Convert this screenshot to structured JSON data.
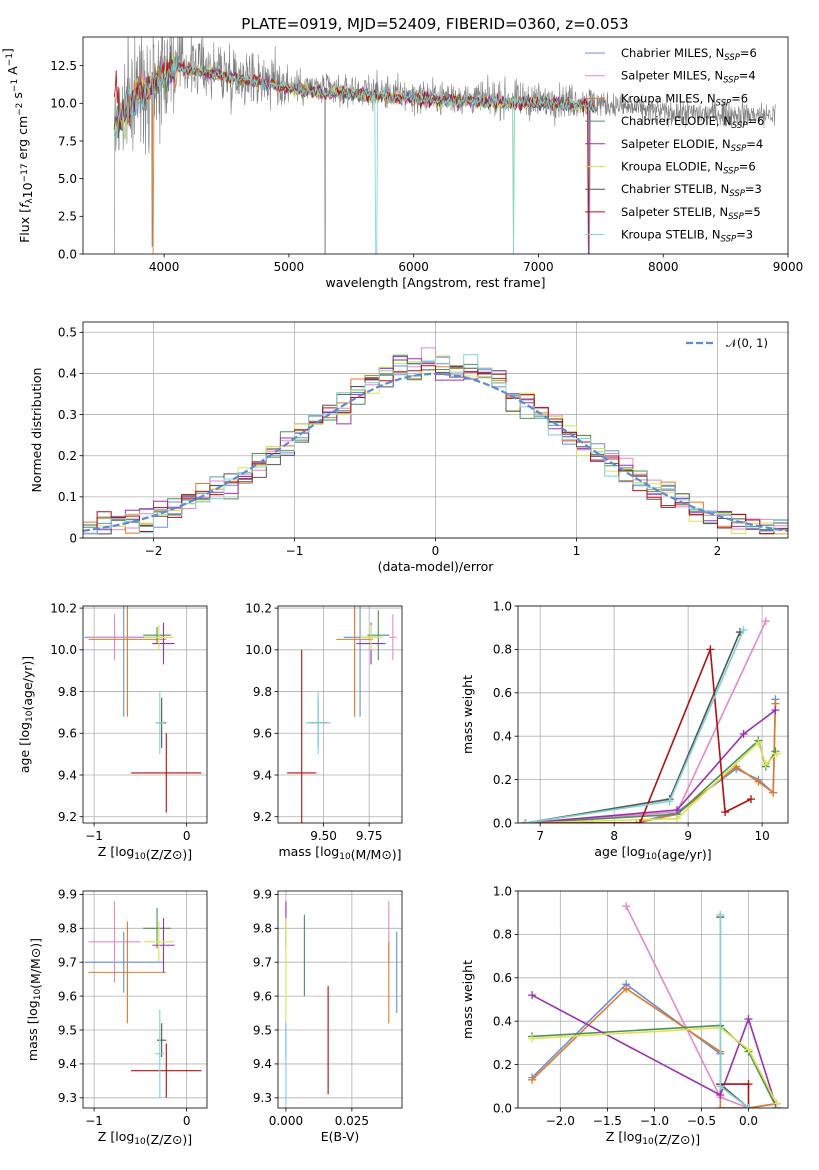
{
  "colors": {
    "Chabrier MILES": "#6a8fd8",
    "Salpeter MILES": "#e58ac6",
    "Kroupa MILES": "#e07b2a",
    "Chabrier ELODIE": "#4f8f58",
    "Salpeter ELODIE": "#9b30b5",
    "Kroupa ELODIE": "#d8e456",
    "Chabrier STELIB": "#555555",
    "Salpeter STELIB": "#b01010",
    "Kroupa STELIB": "#7ed4d4",
    "obs": "#808080",
    "gauss": "#5b8bd6"
  },
  "chart_data": [
    {
      "type": "line",
      "id": "spectrum",
      "title": "PLATE=0919, MJD=52409, FIBERID=0360, z=0.053",
      "xlabel": "wavelength [Angstrom, rest frame]",
      "ylabel": "Flux [fλ10⁻¹⁷ erg cm⁻² s⁻¹ A⁻¹]",
      "xlim": [
        3350,
        9000
      ],
      "ylim": [
        0,
        14.4
      ],
      "xticks": [
        4000,
        5000,
        6000,
        7000,
        8000,
        9000
      ],
      "yticks": [
        0.0,
        2.5,
        5.0,
        7.5,
        10.0,
        12.5
      ],
      "legend": "top-right",
      "continuum": [
        [
          3600,
          8.5
        ],
        [
          3700,
          9.8
        ],
        [
          3800,
          11.0
        ],
        [
          3900,
          11.3
        ],
        [
          4000,
          12.2
        ],
        [
          4100,
          12.6
        ],
        [
          4300,
          12.4
        ],
        [
          4500,
          12.0
        ],
        [
          4800,
          11.6
        ],
        [
          5000,
          11.2
        ],
        [
          5300,
          10.9
        ],
        [
          5600,
          10.8
        ],
        [
          6000,
          10.5
        ],
        [
          6500,
          10.3
        ],
        [
          7000,
          10.2
        ],
        [
          7400,
          10.1
        ],
        [
          8000,
          9.4
        ],
        [
          8500,
          9.3
        ],
        [
          8900,
          9.2
        ]
      ],
      "obs_range": [
        3600,
        8900
      ],
      "model_range": [
        3600,
        7450
      ],
      "series": [
        {
          "name": "Chabrier MILES",
          "nssp": "6"
        },
        {
          "name": "Salpeter MILES",
          "nssp": "4"
        },
        {
          "name": "Kroupa MILES",
          "nssp": "6"
        },
        {
          "name": "Chabrier ELODIE",
          "nssp": "6"
        },
        {
          "name": "Salpeter ELODIE",
          "nssp": "4"
        },
        {
          "name": "Kroupa ELODIE",
          "nssp": "6"
        },
        {
          "name": "Chabrier STELIB",
          "nssp": "3"
        },
        {
          "name": "Salpeter STELIB",
          "nssp": "5"
        },
        {
          "name": "Kroupa STELIB",
          "nssp": "3"
        }
      ]
    },
    {
      "type": "line",
      "id": "residuals",
      "xlabel": "(data-model)/error",
      "ylabel": "Normed distribution",
      "xlim": [
        -2.5,
        2.5
      ],
      "ylim": [
        0,
        0.525
      ],
      "xticks": [
        -2,
        -1,
        0,
        1,
        2
      ],
      "yticks": [
        0.0,
        0.1,
        0.2,
        0.3,
        0.4,
        0.5
      ],
      "grid": true,
      "legend": "top-right",
      "legend_label": "𝒩(0, 1)",
      "bin_width": 0.1
    },
    {
      "type": "scatter",
      "id": "age_vs_z",
      "xlabel": "Z [log10(Z/Z⊙)]",
      "ylabel": "age  [log10(age/yr)]",
      "xlim": [
        -1.12,
        0.22
      ],
      "ylim": [
        9.17,
        10.21
      ],
      "xticks": [
        -1,
        0
      ],
      "yticks": [
        9.2,
        9.4,
        9.6,
        9.8,
        10.0,
        10.2
      ],
      "points": [
        {
          "series": "Chabrier MILES",
          "x": -0.68,
          "xerr": 0.42,
          "y": 10.06,
          "yerr": 0.38
        },
        {
          "series": "Salpeter MILES",
          "x": -0.78,
          "xerr": 0.28,
          "y": 10.06,
          "yerr": 0.11
        },
        {
          "series": "Kroupa MILES",
          "x": -0.64,
          "xerr": 0.42,
          "y": 10.05,
          "yerr": 0.37
        },
        {
          "series": "Chabrier ELODIE",
          "x": -0.32,
          "xerr": 0.15,
          "y": 10.07,
          "yerr": 0.04
        },
        {
          "series": "Salpeter ELODIE",
          "x": -0.25,
          "xerr": 0.12,
          "y": 10.03,
          "yerr": 0.1
        },
        {
          "series": "Kroupa ELODIE",
          "x": -0.3,
          "xerr": 0.16,
          "y": 10.06,
          "yerr": 0.06
        },
        {
          "series": "Chabrier STELIB",
          "x": -0.27,
          "xerr": 0.05,
          "y": 9.65,
          "yerr": 0.12
        },
        {
          "series": "Salpeter STELIB",
          "x": -0.22,
          "xerr": 0.38,
          "y": 9.41,
          "yerr": 0.19
        },
        {
          "series": "Kroupa STELIB",
          "x": -0.29,
          "xerr": 0.05,
          "y": 9.65,
          "yerr": 0.15
        }
      ]
    },
    {
      "type": "scatter",
      "id": "age_vs_mass",
      "xlabel": "mass [log10(M/M⊙)]",
      "ylabel": "",
      "xlim": [
        9.25,
        9.93
      ],
      "ylim": [
        9.17,
        10.21
      ],
      "xticks": [
        9.5,
        9.75
      ],
      "yticks": [
        9.2,
        9.4,
        9.6,
        9.8,
        10.0,
        10.2
      ],
      "points": [
        {
          "series": "Chabrier MILES",
          "x": 9.7,
          "xerr": 0.09,
          "y": 10.06,
          "yerr": 0.38
        },
        {
          "series": "Salpeter MILES",
          "x": 9.88,
          "xerr": 0.02,
          "y": 10.06,
          "yerr": 0.11
        },
        {
          "series": "Kroupa MILES",
          "x": 9.67,
          "xerr": 0.1,
          "y": 10.05,
          "yerr": 0.37
        },
        {
          "series": "Chabrier ELODIE",
          "x": 9.8,
          "xerr": 0.06,
          "y": 10.07,
          "yerr": 0.12
        },
        {
          "series": "Salpeter ELODIE",
          "x": 9.76,
          "xerr": 0.08,
          "y": 10.03,
          "yerr": 0.1
        },
        {
          "series": "Kroupa ELODIE",
          "x": 9.76,
          "xerr": 0.06,
          "y": 10.06,
          "yerr": 0.06
        },
        {
          "series": "Chabrier STELIB",
          "x": 9.47,
          "xerr": 0.05,
          "y": 9.65,
          "yerr": 0.12
        },
        {
          "series": "Salpeter STELIB",
          "x": 9.38,
          "xerr": 0.08,
          "y": 9.41,
          "yerr": 0.59
        },
        {
          "series": "Kroupa STELIB",
          "x": 9.47,
          "xerr": 0.07,
          "y": 9.65,
          "yerr": 0.15
        }
      ]
    },
    {
      "type": "line",
      "id": "weight_vs_age",
      "xlabel": "age  [log10(age/yr)]",
      "ylabel": "mass weight",
      "xlim": [
        6.7,
        10.35
      ],
      "ylim": [
        0,
        1.0
      ],
      "xticks": [
        7,
        8,
        9,
        10
      ],
      "yticks": [
        0.0,
        0.2,
        0.4,
        0.6,
        0.8,
        1.0
      ],
      "grid": true,
      "series": [
        {
          "name": "Chabrier MILES",
          "x": [
            6.8,
            7.7,
            8.3,
            8.85,
            9.65,
            9.95,
            10.15,
            10.18
          ],
          "y": [
            0.0,
            0.0,
            0.0,
            0.05,
            0.25,
            0.2,
            0.14,
            0.57
          ]
        },
        {
          "name": "Salpeter MILES",
          "x": [
            6.8,
            8.85,
            10.05
          ],
          "y": [
            0.0,
            0.05,
            0.93
          ]
        },
        {
          "name": "Kroupa MILES",
          "x": [
            6.8,
            7.7,
            8.3,
            8.85,
            9.65,
            9.95,
            10.15,
            10.18
          ],
          "y": [
            0.0,
            0.0,
            0.0,
            0.04,
            0.26,
            0.19,
            0.14,
            0.55
          ]
        },
        {
          "name": "Chabrier ELODIE",
          "x": [
            6.8,
            8.85,
            9.95,
            10.05,
            10.18
          ],
          "y": [
            0.0,
            0.04,
            0.38,
            0.26,
            0.33
          ]
        },
        {
          "name": "Salpeter ELODIE",
          "x": [
            6.8,
            8.85,
            9.75,
            10.18
          ],
          "y": [
            0.0,
            0.06,
            0.41,
            0.52
          ]
        },
        {
          "name": "Kroupa ELODIE",
          "x": [
            6.8,
            8.85,
            9.95,
            10.05,
            10.2
          ],
          "y": [
            0.0,
            0.02,
            0.37,
            0.27,
            0.32
          ]
        },
        {
          "name": "Chabrier STELIB",
          "x": [
            6.8,
            8.75,
            9.7
          ],
          "y": [
            0.0,
            0.11,
            0.88
          ]
        },
        {
          "name": "Salpeter STELIB",
          "x": [
            6.8,
            8.35,
            9.3,
            9.5,
            9.85
          ],
          "y": [
            0.0,
            0.0,
            0.8,
            0.05,
            0.11
          ]
        },
        {
          "name": "Kroupa STELIB",
          "x": [
            6.8,
            8.75,
            9.75
          ],
          "y": [
            0.0,
            0.1,
            0.89
          ]
        }
      ]
    },
    {
      "type": "scatter",
      "id": "mass_vs_z",
      "xlabel": "Z [log10(Z/Z⊙)]",
      "ylabel": "mass [log10(M/M⊙)]",
      "xlim": [
        -1.12,
        0.22
      ],
      "ylim": [
        9.27,
        9.91
      ],
      "xticks": [
        -1,
        0
      ],
      "yticks": [
        9.3,
        9.4,
        9.5,
        9.6,
        9.7,
        9.8,
        9.9
      ],
      "points": [
        {
          "series": "Chabrier MILES",
          "x": -0.68,
          "xerr": 0.42,
          "y": 9.7,
          "yerr": 0.09
        },
        {
          "series": "Salpeter MILES",
          "x": -0.78,
          "xerr": 0.28,
          "y": 9.76,
          "yerr": 0.12
        },
        {
          "series": "Kroupa MILES",
          "x": -0.64,
          "xerr": 0.42,
          "y": 9.67,
          "yerr": 0.15
        },
        {
          "series": "Chabrier ELODIE",
          "x": -0.32,
          "xerr": 0.15,
          "y": 9.8,
          "yerr": 0.06
        },
        {
          "series": "Salpeter ELODIE",
          "x": -0.25,
          "xerr": 0.12,
          "y": 9.75,
          "yerr": 0.08
        },
        {
          "series": "Kroupa ELODIE",
          "x": -0.3,
          "xerr": 0.16,
          "y": 9.76,
          "yerr": 0.06
        },
        {
          "series": "Chabrier STELIB",
          "x": -0.27,
          "xerr": 0.05,
          "y": 9.47,
          "yerr": 0.05
        },
        {
          "series": "Salpeter STELIB",
          "x": -0.22,
          "xerr": 0.38,
          "y": 9.38,
          "yerr": 0.08
        },
        {
          "series": "Kroupa STELIB",
          "x": -0.29,
          "xerr": 0.05,
          "y": 9.43,
          "yerr": 0.13
        }
      ]
    },
    {
      "type": "scatter",
      "id": "mass_vs_ebv",
      "xlabel": "E(B-V)",
      "ylabel": "",
      "xlim": [
        -0.003,
        0.044
      ],
      "ylim": [
        9.27,
        9.91
      ],
      "xticks": [
        0.0,
        0.025
      ],
      "yticks": [
        9.3,
        9.4,
        9.5,
        9.6,
        9.7,
        9.8,
        9.9
      ],
      "points": [
        {
          "series": "Chabrier MILES",
          "x": 0.042,
          "y": 9.67,
          "yerr": 0.12
        },
        {
          "series": "Salpeter MILES",
          "x": 0.039,
          "y": 9.79,
          "yerr": 0.09
        },
        {
          "series": "Kroupa MILES",
          "x": 0.039,
          "y": 9.64,
          "yerr": 0.12
        },
        {
          "series": "Chabrier ELODIE",
          "x": 0.007,
          "y": 9.72,
          "yerr": 0.12
        },
        {
          "series": "Salpeter ELODIE",
          "x": 0.0,
          "y": 9.81,
          "yerr": 0.07
        },
        {
          "series": "Kroupa ELODIE",
          "x": 0.0,
          "y": 9.68,
          "yerr": 0.15
        },
        {
          "series": "Chabrier STELIB",
          "x": 0.0,
          "y": 9.47,
          "yerr": 0.05
        },
        {
          "series": "Salpeter STELIB",
          "x": 0.016,
          "y": 9.47,
          "yerr": 0.16
        },
        {
          "series": "Kroupa STELIB",
          "x": 0.0,
          "y": 9.4,
          "yerr": 0.12
        }
      ]
    },
    {
      "type": "line",
      "id": "weight_vs_z",
      "xlabel": "Z [log10(Z/Z⊙)]",
      "ylabel": "mass weight",
      "xlim": [
        -2.45,
        0.42
      ],
      "ylim": [
        0,
        1.0
      ],
      "xticks": [
        -2.0,
        -1.5,
        -1.0,
        -0.5,
        0.0
      ],
      "yticks": [
        0.0,
        0.2,
        0.4,
        0.6,
        0.8,
        1.0
      ],
      "grid": true,
      "series": [
        {
          "name": "Chabrier MILES",
          "x": [
            -2.3,
            -1.3,
            -0.3,
            -0.3,
            0.0,
            0.3
          ],
          "y": [
            0.14,
            0.57,
            0.25,
            0.0,
            0.0,
            0.02
          ]
        },
        {
          "name": "Salpeter MILES",
          "x": [
            -1.3,
            -0.3,
            0.0,
            0.3
          ],
          "y": [
            0.93,
            0.05,
            0.0,
            0.02
          ]
        },
        {
          "name": "Kroupa MILES",
          "x": [
            -2.3,
            -1.3,
            -0.3,
            -0.3,
            0.0,
            0.3
          ],
          "y": [
            0.13,
            0.55,
            0.26,
            0.0,
            0.0,
            0.02
          ]
        },
        {
          "name": "Chabrier ELODIE",
          "x": [
            -2.3,
            -0.3,
            0.0,
            0.3
          ],
          "y": [
            0.33,
            0.38,
            0.26,
            0.0
          ]
        },
        {
          "name": "Salpeter ELODIE",
          "x": [
            -2.3,
            -0.3,
            0.0,
            0.3
          ],
          "y": [
            0.52,
            0.06,
            0.41,
            0.0
          ]
        },
        {
          "name": "Kroupa ELODIE",
          "x": [
            -2.3,
            -0.3,
            0.0,
            0.3
          ],
          "y": [
            0.32,
            0.37,
            0.27,
            0.02
          ]
        },
        {
          "name": "Chabrier STELIB",
          "x": [
            -0.3,
            -0.3,
            0.0
          ],
          "y": [
            0.88,
            0.11,
            0.0
          ]
        },
        {
          "name": "Salpeter STELIB",
          "x": [
            -0.3,
            0.0,
            0.0
          ],
          "y": [
            0.11,
            0.11,
            0.0
          ]
        },
        {
          "name": "Kroupa STELIB",
          "x": [
            -0.3,
            -0.3,
            0.0
          ],
          "y": [
            0.89,
            0.1,
            0.0
          ]
        }
      ]
    }
  ]
}
